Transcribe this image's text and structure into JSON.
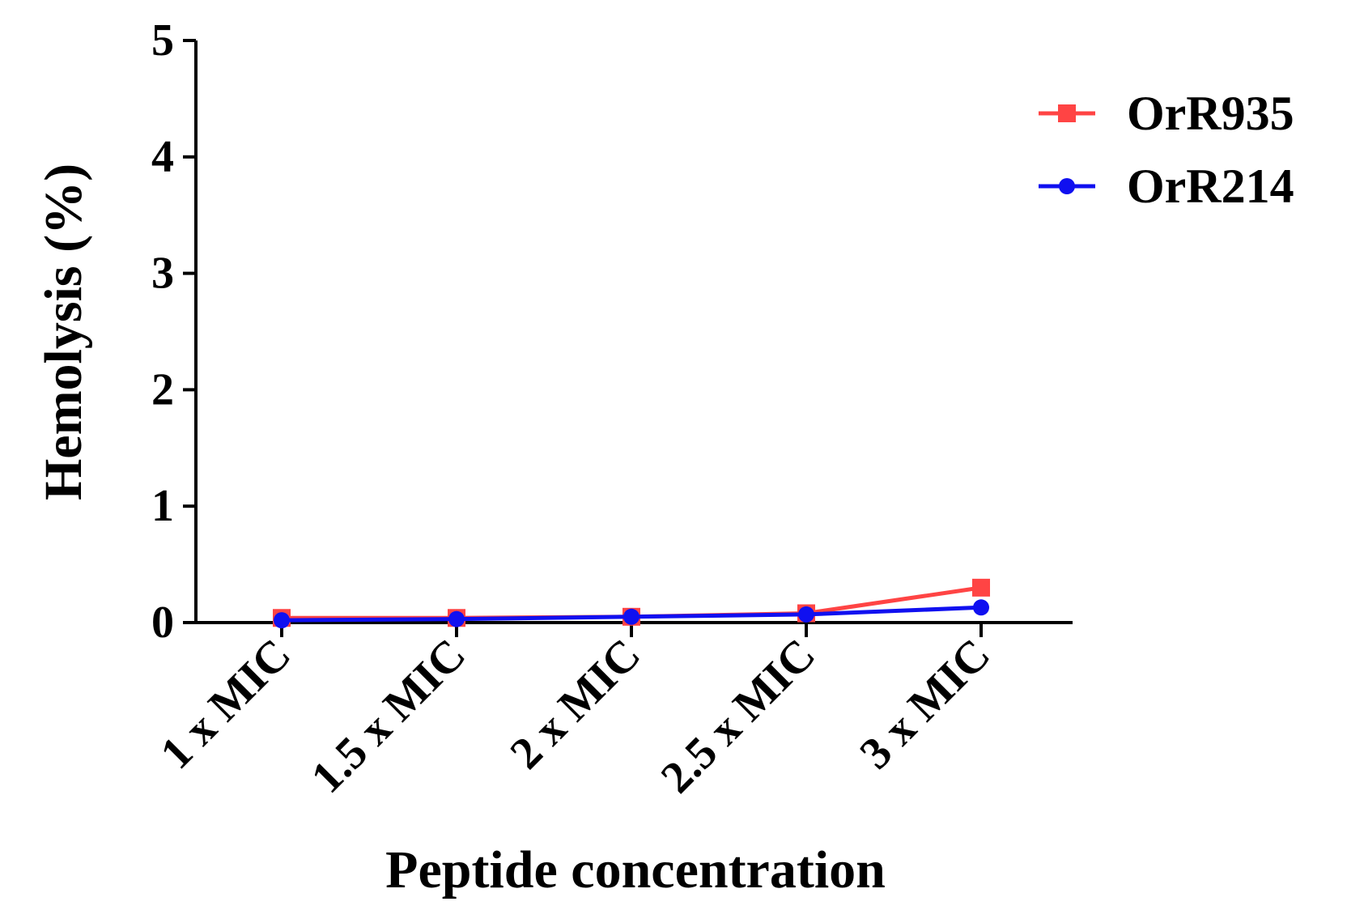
{
  "chart_data": {
    "type": "line",
    "title": "",
    "xlabel": "Peptide concentration",
    "ylabel": "Hemolysis (%)",
    "categories": [
      "1 x MIC",
      "1.5 x MIC",
      "2 x MIC",
      "2.5 x MIC",
      "3 x MIC"
    ],
    "ylim": [
      0,
      5
    ],
    "yticks": [
      0,
      1,
      2,
      3,
      4,
      5
    ],
    "grid": false,
    "legend_position": "top-right",
    "series": [
      {
        "name": "OrR935",
        "values": [
          0.04,
          0.04,
          0.05,
          0.08,
          0.3
        ],
        "color": "#ff4444",
        "marker": "square"
      },
      {
        "name": "OrR214",
        "values": [
          0.02,
          0.03,
          0.05,
          0.07,
          0.13
        ],
        "color": "#1010f0",
        "marker": "circle"
      }
    ]
  }
}
